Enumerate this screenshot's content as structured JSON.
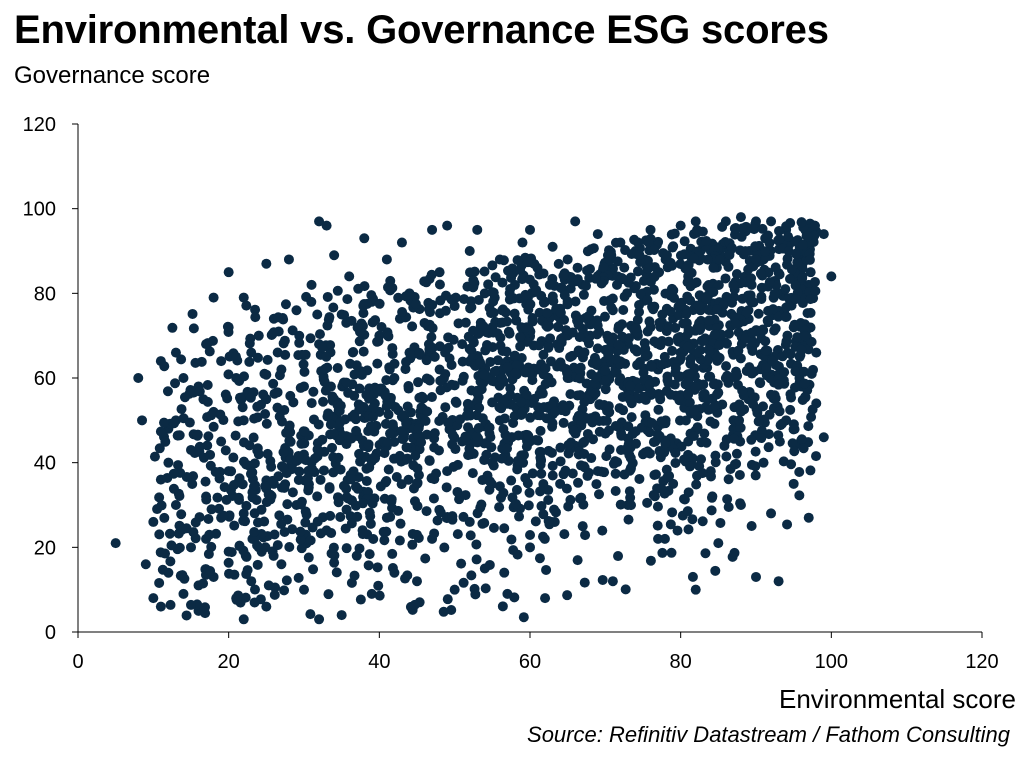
{
  "chart_data": {
    "type": "scatter",
    "title": "Environmental vs. Governance ESG scores",
    "ylabel": "Governance score",
    "xlabel": "Environmental score",
    "source": "Source: Refinitiv Datastream / Fathom Consulting",
    "xlim": [
      0,
      120
    ],
    "ylim": [
      0,
      120
    ],
    "x_ticks": [
      0,
      20,
      40,
      60,
      80,
      100,
      120
    ],
    "y_ticks": [
      0,
      20,
      40,
      60,
      80,
      100,
      120
    ],
    "grid": false,
    "legend": "none",
    "point_color": "#0b2a44",
    "approx_point_count": 2500,
    "points": [
      [
        5,
        21
      ],
      [
        8,
        60
      ],
      [
        8.5,
        50
      ],
      [
        9,
        16
      ],
      [
        10,
        26
      ],
      [
        10,
        8
      ],
      [
        11,
        6
      ],
      [
        11,
        36
      ],
      [
        11,
        64
      ],
      [
        12,
        48
      ],
      [
        12,
        40
      ],
      [
        12,
        14
      ],
      [
        13,
        66
      ],
      [
        13,
        50
      ],
      [
        13,
        30
      ],
      [
        14,
        60
      ],
      [
        14,
        9
      ],
      [
        15,
        20
      ],
      [
        15,
        43
      ],
      [
        16,
        58
      ],
      [
        16,
        11
      ],
      [
        16,
        5
      ],
      [
        17,
        68
      ],
      [
        17,
        32
      ],
      [
        17,
        22
      ],
      [
        18,
        79
      ],
      [
        18,
        52
      ],
      [
        18,
        13
      ],
      [
        19,
        64
      ],
      [
        19,
        45
      ],
      [
        19,
        27
      ],
      [
        20,
        85
      ],
      [
        20,
        72
      ],
      [
        20,
        38
      ],
      [
        20,
        19
      ],
      [
        21,
        60
      ],
      [
        21,
        8
      ],
      [
        22,
        79
      ],
      [
        22,
        50
      ],
      [
        22,
        28
      ],
      [
        22,
        3
      ],
      [
        23,
        66
      ],
      [
        23,
        12
      ],
      [
        24,
        70
      ],
      [
        24,
        42
      ],
      [
        24,
        20
      ],
      [
        25,
        87
      ],
      [
        25,
        55
      ],
      [
        25,
        6
      ],
      [
        26,
        74
      ],
      [
        26,
        35
      ],
      [
        27,
        62
      ],
      [
        27,
        16
      ],
      [
        28,
        88
      ],
      [
        28,
        48
      ],
      [
        29,
        76
      ],
      [
        29,
        30
      ],
      [
        30,
        58
      ],
      [
        30,
        10
      ],
      [
        31,
        82
      ],
      [
        31,
        40
      ],
      [
        32,
        97
      ],
      [
        32,
        3
      ],
      [
        32,
        68
      ],
      [
        33,
        96
      ],
      [
        33,
        24
      ],
      [
        34,
        89
      ],
      [
        34,
        55
      ],
      [
        35,
        75
      ],
      [
        35,
        4
      ],
      [
        36,
        84
      ],
      [
        36,
        46
      ],
      [
        37,
        63
      ],
      [
        37,
        18
      ],
      [
        38,
        93
      ],
      [
        38,
        33
      ],
      [
        39,
        78
      ],
      [
        39,
        9
      ],
      [
        40,
        70
      ],
      [
        40,
        52
      ],
      [
        41,
        88
      ],
      [
        41,
        27
      ],
      [
        42,
        60
      ],
      [
        42,
        14
      ],
      [
        43,
        92
      ],
      [
        43,
        41
      ],
      [
        44,
        80
      ],
      [
        44,
        66
      ],
      [
        45,
        35
      ],
      [
        45,
        12
      ],
      [
        46,
        73
      ],
      [
        46,
        50
      ],
      [
        47,
        95
      ],
      [
        47,
        22
      ],
      [
        48,
        85
      ],
      [
        48,
        62
      ],
      [
        49,
        96
      ],
      [
        49,
        38
      ],
      [
        50,
        77
      ],
      [
        50,
        10
      ],
      [
        51,
        68
      ],
      [
        51,
        45
      ],
      [
        52,
        90
      ],
      [
        52,
        26
      ],
      [
        53,
        95
      ],
      [
        53,
        57
      ],
      [
        54,
        80
      ],
      [
        54,
        15
      ],
      [
        55,
        72
      ],
      [
        55,
        40
      ],
      [
        56,
        88
      ],
      [
        56,
        50
      ],
      [
        57,
        64
      ],
      [
        57,
        9
      ],
      [
        58,
        82
      ],
      [
        58,
        30
      ],
      [
        59,
        92
      ],
      [
        59,
        55
      ],
      [
        60,
        95
      ],
      [
        60,
        70
      ],
      [
        60,
        45
      ],
      [
        60,
        20
      ],
      [
        61,
        86
      ],
      [
        61,
        62
      ],
      [
        62,
        78
      ],
      [
        62,
        8
      ],
      [
        63,
        91
      ],
      [
        63,
        52
      ],
      [
        64,
        74
      ],
      [
        64,
        35
      ],
      [
        65,
        88
      ],
      [
        65,
        60
      ],
      [
        66,
        97
      ],
      [
        66,
        44
      ],
      [
        67,
        82
      ],
      [
        67,
        25
      ],
      [
        68,
        70
      ],
      [
        68,
        55
      ],
      [
        69,
        94
      ],
      [
        69,
        38
      ],
      [
        70,
        86
      ],
      [
        70,
        64
      ],
      [
        71,
        76
      ],
      [
        71,
        12
      ],
      [
        72,
        92
      ],
      [
        72,
        48
      ],
      [
        73,
        68
      ],
      [
        73,
        30
      ],
      [
        74,
        90
      ],
      [
        74,
        58
      ],
      [
        75,
        80
      ],
      [
        75,
        42
      ],
      [
        76,
        95
      ],
      [
        76,
        72
      ],
      [
        77,
        62
      ],
      [
        77,
        22
      ],
      [
        78,
        88
      ],
      [
        78,
        50
      ],
      [
        79,
        74
      ],
      [
        79,
        35
      ],
      [
        80,
        96
      ],
      [
        80,
        66
      ],
      [
        81,
        84
      ],
      [
        81,
        45
      ],
      [
        82,
        97
      ],
      [
        82,
        10
      ],
      [
        83,
        78
      ],
      [
        83,
        56
      ],
      [
        84,
        90
      ],
      [
        84,
        38
      ],
      [
        85,
        70
      ],
      [
        85,
        21
      ],
      [
        86,
        97
      ],
      [
        86,
        60
      ],
      [
        87,
        82
      ],
      [
        87,
        48
      ],
      [
        88,
        98
      ],
      [
        88,
        30
      ],
      [
        89,
        76
      ],
      [
        89,
        55
      ],
      [
        90,
        97
      ],
      [
        90,
        13
      ],
      [
        91,
        88
      ],
      [
        91,
        40
      ],
      [
        92,
        97
      ],
      [
        92,
        64
      ],
      [
        93,
        80
      ],
      [
        93,
        12
      ],
      [
        94,
        95
      ],
      [
        94,
        50
      ],
      [
        95,
        72
      ],
      [
        95,
        35
      ],
      [
        96,
        90
      ],
      [
        96,
        58
      ],
      [
        97,
        82
      ],
      [
        97,
        27
      ],
      [
        98,
        66
      ],
      [
        98,
        54
      ],
      [
        99,
        46
      ],
      [
        99,
        94
      ],
      [
        100,
        84
      ]
    ]
  }
}
